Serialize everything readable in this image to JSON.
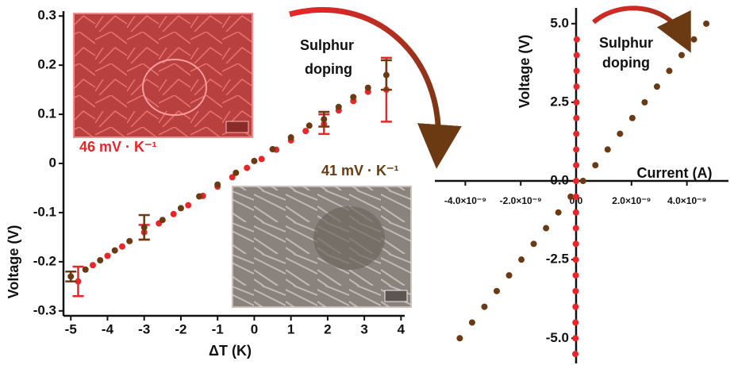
{
  "chart_data": [
    {
      "type": "scatter",
      "xlabel": "ΔT (K)",
      "ylabel": "Voltage (V)",
      "xlim": [
        -5.2,
        4.1
      ],
      "ylim": [
        -0.31,
        0.31
      ],
      "xticks": [
        -5,
        -4,
        -3,
        -2,
        -1,
        0,
        1,
        2,
        3,
        4
      ],
      "yticks": [
        0.3,
        0.2,
        0.1,
        0,
        -0.1,
        -0.2,
        -0.3
      ],
      "annotations": [
        "Sulphur",
        "doping",
        "46 mV · K⁻¹",
        "41 mV · K⁻¹"
      ],
      "series": [
        {
          "color": "#e8262a",
          "x": [
            -4.8,
            -4.4,
            -4.0,
            -3.6,
            -3.0,
            -2.6,
            -2.2,
            -1.8,
            -1.4,
            -1.0,
            -0.6,
            -0.2,
            0.2,
            0.6,
            1.0,
            1.4,
            1.9,
            2.3,
            2.7,
            3.1,
            3.6
          ],
          "values": [
            -0.24,
            -0.207,
            -0.188,
            -0.169,
            -0.14,
            -0.122,
            -0.103,
            -0.085,
            -0.066,
            -0.047,
            -0.028,
            -0.009,
            0.009,
            0.028,
            0.047,
            0.066,
            0.08,
            0.108,
            0.127,
            0.146,
            0.15
          ],
          "errors": [
            0.03,
            null,
            null,
            null,
            0.015,
            null,
            null,
            null,
            null,
            null,
            null,
            null,
            null,
            null,
            null,
            null,
            0.02,
            null,
            null,
            null,
            0.065
          ]
        },
        {
          "color": "#6b3a12",
          "x": [
            -5.0,
            -4.6,
            -4.2,
            -3.8,
            -3.4,
            -3.0,
            -2.5,
            -2.0,
            -1.5,
            -1.0,
            -0.5,
            0,
            0.5,
            1.0,
            1.5,
            1.9,
            2.3,
            2.7,
            3.1,
            3.6
          ],
          "values": [
            -0.23,
            -0.216,
            -0.197,
            -0.177,
            -0.158,
            -0.13,
            -0.115,
            -0.091,
            -0.067,
            -0.043,
            -0.019,
            0.005,
            0.029,
            0.053,
            0.077,
            0.09,
            0.115,
            0.135,
            0.154,
            0.18
          ],
          "errors": [
            0.01,
            null,
            null,
            null,
            null,
            0.025,
            null,
            null,
            null,
            null,
            null,
            null,
            null,
            null,
            null,
            0.015,
            null,
            null,
            null,
            0.03
          ]
        }
      ]
    },
    {
      "type": "scatter",
      "xlabel": "Current (A)",
      "ylabel": "Voltage (V)",
      "xlim": [
        -5.1e-09,
        5.5e-09
      ],
      "ylim": [
        -5.8,
        5.5
      ],
      "xticks": [
        {
          "value": -4e-09,
          "label": "-4.0×10⁻⁹"
        },
        {
          "value": -2e-09,
          "label": "-2.0×10⁻⁹"
        },
        {
          "value": 0,
          "label": "0.0"
        },
        {
          "value": 2e-09,
          "label": "2.0×10⁻⁹"
        },
        {
          "value": 4e-09,
          "label": "4.0×10⁻⁹"
        }
      ],
      "yticks": [
        {
          "value": 5,
          "label": "5.0"
        },
        {
          "value": 2.5,
          "label": "2.5"
        },
        {
          "value": 0,
          "label": "0.0"
        },
        {
          "value": -2.5,
          "label": "-2.5"
        },
        {
          "value": -5,
          "label": "-5.0"
        }
      ],
      "annotations": [
        "Sulphur",
        "doping"
      ],
      "series": [
        {
          "color": "#6b3a12",
          "x": [
            -4.2e-09,
            -3.755e-09,
            -3.31e-09,
            -2.865e-09,
            -2.42e-09,
            -1.975e-09,
            -1.53e-09,
            -1.085e-09,
            -6.4e-10,
            -1.95e-10,
            2.5e-10,
            6.95e-10,
            1.14e-09,
            1.585e-09,
            2.03e-09,
            2.475e-09,
            2.92e-09,
            3.365e-09,
            3.81e-09,
            4.255e-09,
            4.7e-09
          ],
          "values": [
            -5,
            -4.5,
            -4,
            -3.5,
            -3,
            -2.5,
            -2,
            -1.5,
            -1,
            -0.5,
            0,
            0.5,
            1,
            1.5,
            2,
            2.5,
            3,
            3.5,
            4,
            4.5,
            5
          ]
        },
        {
          "color": "#e8262a",
          "x": [
            -2.75e-11,
            -2.5e-11,
            -2.25e-11,
            -2e-11,
            -1.75e-11,
            -1.5e-11,
            -1.25e-11,
            -1e-11,
            -7.5e-12,
            -5e-12,
            -2.5e-12,
            0,
            2.5e-12,
            5e-12,
            7.5e-12,
            1e-11,
            1.25e-11,
            1.5e-11,
            1.75e-11,
            2e-11,
            2.25e-11
          ],
          "values": [
            -5.5,
            -5,
            -4.5,
            -4,
            -3.5,
            -3,
            -2.5,
            -2,
            -1.5,
            -1,
            -0.5,
            0,
            0.5,
            1,
            1.5,
            2,
            2.5,
            3,
            3.5,
            4,
            4.5
          ]
        }
      ]
    }
  ]
}
